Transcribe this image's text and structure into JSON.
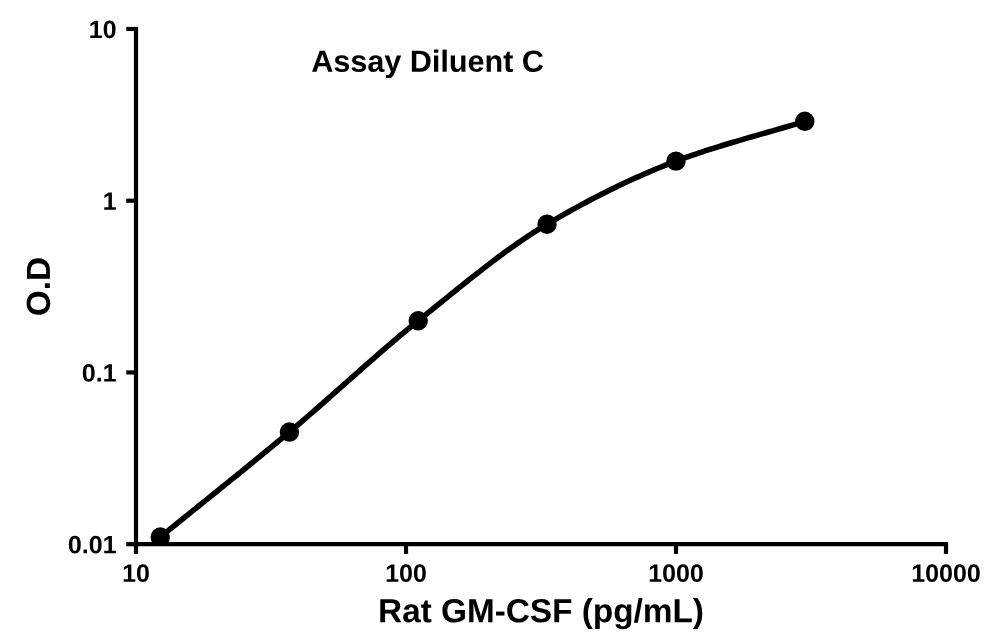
{
  "chart_data": {
    "type": "line",
    "title": "Assay Diluent C",
    "xlabel": "Rat GM-CSF (pg/mL)",
    "ylabel": "O.D",
    "log": "xy",
    "xlim": [
      10,
      10000
    ],
    "ylim": [
      0.01,
      10
    ],
    "xticks": [
      10,
      100,
      1000,
      10000
    ],
    "yticks": [
      0.01,
      0.1,
      1,
      10
    ],
    "grid": false,
    "legend": false,
    "marker": "circle",
    "line_style": "solid",
    "series": [
      {
        "color": "#000000",
        "x": [
          12.3,
          37,
          111,
          333,
          1000,
          3000
        ],
        "values": [
          0.011,
          0.045,
          0.2,
          0.73,
          1.7,
          2.9
        ]
      }
    ]
  }
}
